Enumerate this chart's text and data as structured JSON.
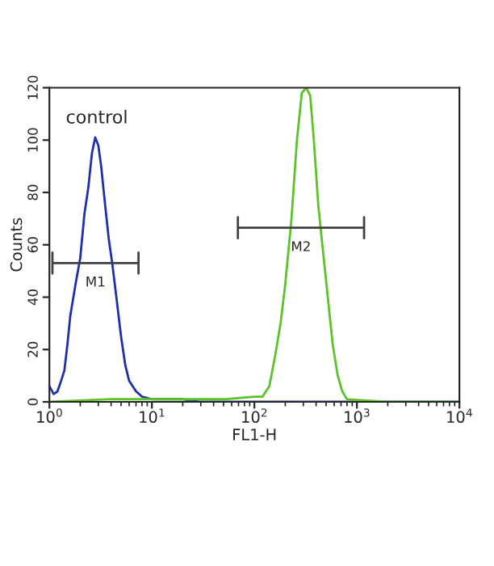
{
  "chart_data": {
    "type": "line",
    "xlabel": "FL1-H",
    "ylabel": "Counts",
    "log": "x",
    "xlim": [
      1,
      10000
    ],
    "xticks": [
      {
        "value": 1,
        "label": "10$^{0}$"
      },
      {
        "value": 10,
        "label": "10$^{1}$"
      },
      {
        "value": 100,
        "label": "10$^{2}$"
      },
      {
        "value": 1000,
        "label": "10$^{3}$"
      },
      {
        "value": 10000,
        "label": "10$^{4}$"
      }
    ],
    "ylim": [
      0,
      120
    ],
    "yticks": [
      0,
      20,
      40,
      60,
      80,
      100,
      120
    ],
    "grid": false,
    "legend": false,
    "series": [
      {
        "color": "#1f2fa8",
        "x": [
          1,
          1.1,
          1.2,
          1.3,
          1.4,
          1.5,
          1.6,
          1.8,
          2.0,
          2.2,
          2.4,
          2.6,
          2.8,
          3.0,
          3.2,
          3.5,
          3.8,
          4.1,
          4.5,
          5.0,
          5.5,
          6.0,
          7.0,
          8.0,
          10,
          20,
          30,
          100,
          10000
        ],
        "values": [
          6,
          3,
          4,
          8,
          12,
          22,
          33,
          45,
          55,
          72,
          82,
          95,
          101,
          98,
          90,
          75,
          62,
          53,
          40,
          25,
          14,
          8,
          4,
          2,
          1,
          1,
          0,
          0,
          0
        ]
      },
      {
        "color": "#5cc22a",
        "x": [
          1,
          3.7,
          50,
          100,
          120,
          140,
          160,
          180,
          200,
          230,
          260,
          290,
          320,
          350,
          380,
          420,
          460,
          520,
          580,
          650,
          720,
          800,
          2000,
          10000
        ],
        "values": [
          0,
          1,
          1,
          2,
          2,
          6,
          18,
          30,
          45,
          70,
          100,
          118,
          120,
          117,
          100,
          75,
          60,
          40,
          22,
          10,
          4,
          1,
          0,
          0
        ]
      },
      {
        "color": "#404040",
        "x": [
          1.07,
          1.07,
          1.07,
          7.4,
          7.4,
          7.4
        ],
        "values": [
          57,
          49,
          53,
          53,
          57,
          49
        ]
      },
      {
        "color": "#404040",
        "x": [
          69,
          69,
          69,
          1175,
          1175,
          1175
        ],
        "values": [
          70.5,
          62.5,
          66.5,
          66.5,
          70.5,
          62.5
        ]
      }
    ],
    "annotations": [
      "control",
      "M1",
      "M2"
    ]
  }
}
